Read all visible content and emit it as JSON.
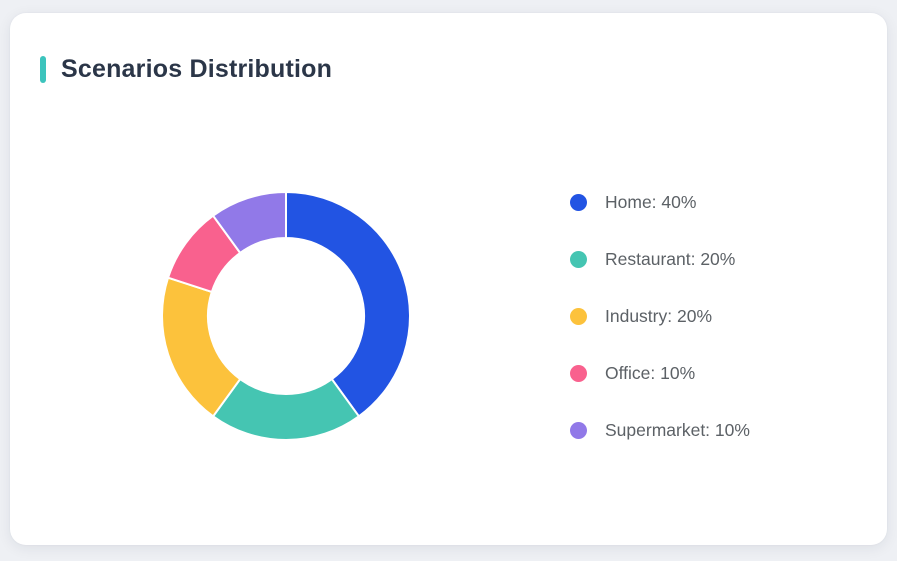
{
  "card": {
    "title": "Scenarios Distribution"
  },
  "theme": {
    "page_background": "#eef0f4",
    "card_background": "#ffffff",
    "accent_color": "#3cc4bd",
    "title_color": "#2b3648",
    "legend_text_color": "#5c6166",
    "segment_separator_color": "#ffffff"
  },
  "chart_data": {
    "type": "pie",
    "variant": "donut",
    "title": "Scenarios Distribution",
    "categories": [
      "Home",
      "Restaurant",
      "Industry",
      "Office",
      "Supermarket"
    ],
    "values": [
      40,
      20,
      20,
      10,
      10
    ],
    "unit": "%",
    "colors": [
      "#2254e3",
      "#45c5b2",
      "#fcc23c",
      "#f9618e",
      "#9179e8"
    ],
    "start_angle": "top",
    "direction": "clockwise",
    "inner_radius_ratio": 0.63,
    "legend_position": "right",
    "legend": [
      {
        "label": "Home: 40%"
      },
      {
        "label": "Restaurant: 20%"
      },
      {
        "label": "Industry: 20%"
      },
      {
        "label": "Office: 10%"
      },
      {
        "label": "Supermarket: 10%"
      }
    ]
  }
}
